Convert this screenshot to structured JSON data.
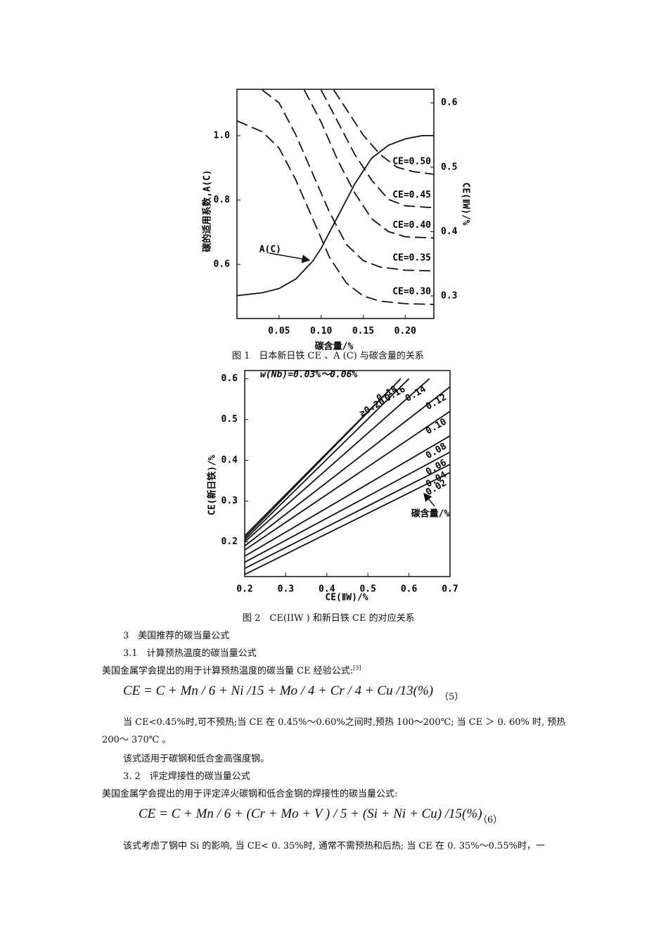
{
  "chart_data": [
    {
      "type": "line",
      "x_label": "碳含量/%",
      "y_label": "碳的适用系数,A(C)",
      "y2_label": "CE(ⅡW)/%",
      "xlim": [
        0,
        0.234
      ],
      "xticks": [
        0.05,
        {
          "value": 0.1,
          "label": "0.10"
        },
        0.15,
        {
          "value": 0.2,
          "label": "0.20"
        }
      ],
      "ylim": [
        0.432,
        1.144
      ],
      "yticks": [
        0.6,
        0.8,
        {
          "value": 1,
          "label": "1.0"
        }
      ],
      "y2lim": [
        0.265,
        0.621
      ],
      "y2ticks": [
        0.3,
        0.4,
        0.5,
        0.6
      ],
      "annotation": "A(C)",
      "series": [
        {
          "name": "A(C)",
          "color": "#111",
          "line_style": "solid",
          "x": [
            0,
            0.03,
            0.05,
            0.07,
            0.09,
            0.1,
            0.11,
            0.12,
            0.13,
            0.14,
            0.15,
            0.16,
            0.18,
            0.2,
            0.22,
            0.234
          ],
          "values": [
            0.503,
            0.512,
            0.525,
            0.555,
            0.61,
            0.65,
            0.7,
            0.75,
            0.8,
            0.85,
            0.89,
            0.93,
            0.97,
            0.99,
            1.0,
            1.0
          ]
        },
        {
          "name": "CE=0.30",
          "color": "#111",
          "line_style": "dashed",
          "axis": "y2",
          "x": [
            0,
            0.03,
            0.05,
            0.07,
            0.09,
            0.11,
            0.13,
            0.15,
            0.17,
            0.2,
            0.234
          ],
          "values": [
            0.572,
            0.555,
            0.53,
            0.48,
            0.42,
            0.36,
            0.32,
            0.3,
            0.292,
            0.288,
            0.287
          ]
        },
        {
          "name": "CE=0.35",
          "color": "#111",
          "line_style": "dashed",
          "axis": "y2",
          "x": [
            0.03,
            0.05,
            0.07,
            0.09,
            0.11,
            0.13,
            0.15,
            0.17,
            0.2,
            0.234
          ],
          "values": [
            0.62,
            0.6,
            0.55,
            0.49,
            0.43,
            0.38,
            0.355,
            0.345,
            0.34,
            0.339
          ]
        },
        {
          "name": "CE=0.40",
          "color": "#111",
          "line_style": "dashed",
          "axis": "y2",
          "x": [
            0.08,
            0.1,
            0.12,
            0.14,
            0.16,
            0.18,
            0.2,
            0.234
          ],
          "values": [
            0.62,
            0.57,
            0.51,
            0.46,
            0.42,
            0.4,
            0.392,
            0.39
          ]
        },
        {
          "name": "CE=0.45",
          "color": "#111",
          "line_style": "dashed",
          "axis": "y2",
          "x": [
            0.1,
            0.12,
            0.14,
            0.16,
            0.18,
            0.2,
            0.234
          ],
          "values": [
            0.62,
            0.57,
            0.52,
            0.48,
            0.45,
            0.44,
            0.437
          ]
        },
        {
          "name": "CE=0.50",
          "color": "#111",
          "line_style": "dashed",
          "axis": "y2",
          "x": [
            0.115,
            0.13,
            0.15,
            0.17,
            0.19,
            0.21,
            0.234
          ],
          "values": [
            0.62,
            0.59,
            0.55,
            0.52,
            0.5,
            0.493,
            0.489
          ]
        }
      ]
    },
    {
      "type": "line",
      "x_label": "CE(ⅡW)/%",
      "y_label": "CE(新日铁)/%",
      "annotation": "w(Nb)=0.03%～0.06%",
      "series_label": "碳含量/%",
      "xlim": [
        0.2,
        0.7
      ],
      "xticks": [
        0.2,
        0.3,
        0.4,
        0.5,
        0.6,
        0.7
      ],
      "ylim": [
        0.115,
        0.62
      ],
      "yticks": [
        0.2,
        0.3,
        0.4,
        0.5,
        0.6
      ],
      "series": [
        {
          "name": "0.02",
          "color": "#111",
          "x": [
            0.2,
            0.7
          ],
          "values": [
            0.12,
            0.37
          ]
        },
        {
          "name": "0.04",
          "color": "#111",
          "x": [
            0.2,
            0.7
          ],
          "values": [
            0.135,
            0.39
          ]
        },
        {
          "name": "0.06",
          "color": "#111",
          "x": [
            0.2,
            0.7
          ],
          "values": [
            0.15,
            0.42
          ]
        },
        {
          "name": "0.08",
          "color": "#111",
          "x": [
            0.2,
            0.7
          ],
          "values": [
            0.165,
            0.46
          ]
        },
        {
          "name": "0.10",
          "color": "#111",
          "x": [
            0.2,
            0.7
          ],
          "values": [
            0.18,
            0.52
          ]
        },
        {
          "name": "0.12",
          "color": "#111",
          "x": [
            0.2,
            0.7
          ],
          "values": [
            0.19,
            0.58
          ]
        },
        {
          "name": "0.14",
          "color": "#111",
          "x": [
            0.2,
            0.65
          ],
          "values": [
            0.2,
            0.6
          ]
        },
        {
          "name": "0.16",
          "color": "#111",
          "x": [
            0.2,
            0.6
          ],
          "values": [
            0.205,
            0.6
          ]
        },
        {
          "name": "0.18",
          "color": "#111",
          "x": [
            0.2,
            0.58
          ],
          "values": [
            0.21,
            0.6
          ]
        },
        {
          "name": "≥0.20",
          "color": "#111",
          "x": [
            0.2,
            0.55
          ],
          "values": [
            0.215,
            0.57
          ]
        }
      ]
    }
  ],
  "document": {
    "captions": [
      "图 1　日本新日铁 CE 、A (C) 与碳含量的关系",
      "图 2　CE(IIW ) 和新日铁 CE 的对应关系"
    ],
    "section": "3　美国推荐的碳当量公式",
    "subsection_1": "3.1　计算预热温度的碳当量公式",
    "intro_1": "美国金属学会提出的用于计算预热温度的碳当量 CE 经验公式:",
    "reference": "[3]",
    "formula_5": "CE = C + Mn / 6 + Ni /15 + Mo / 4 + Cr / 4 + Cu /13(%)",
    "formula_5_no": "（5）",
    "paragraph_1": "当 CE<0.45%时,可不预热;当 CE 在 0.45%～0.60%之间时,预热 100～200℃; 当 CE ＞ 0. 60% 时, 预热 200～ 370℃ 。",
    "paragraph_2": "该式适用于碳钢和低合金高强度钢。",
    "subsection_2": "3. 2　评定焊接性的碳当量公式",
    "intro_2": "美国金属学会提出的用于评定淬火碳钢和低合金钢的焊接性的碳当量公式:",
    "formula_6": "CE = C + Mn / 6 + (Cr + Mo + V ) / 5 + (Si + Ni + Cu) /15(%)",
    "formula_6_no": "（6）",
    "paragraph_3": "该式考虑了钢中 Si 的影响, 当 CE< 0. 35%时, 通常不需预热和后热; 当 CE 在 0. 35%～0.55%时，一"
  }
}
